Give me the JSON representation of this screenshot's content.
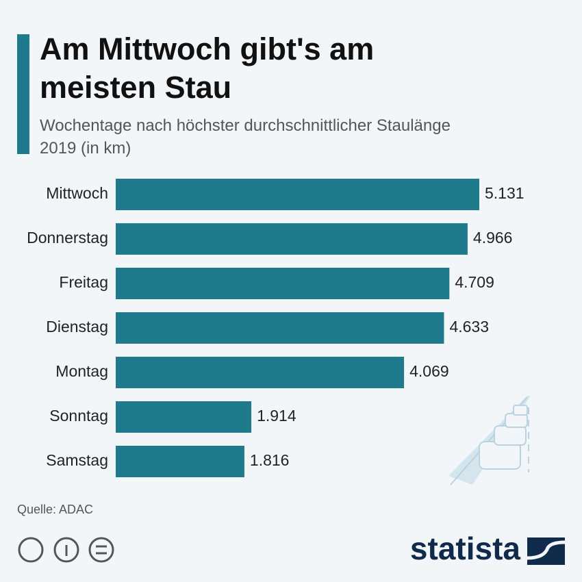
{
  "chart_data": {
    "type": "bar",
    "title": "Am Mittwoch gibt's am meisten Stau",
    "subtitle": "Wochentage nach höchster durchschnittlicher Staulänge 2019 (in km)",
    "categories": [
      "Mittwoch",
      "Donnerstag",
      "Freitag",
      "Dienstag",
      "Montag",
      "Sonntag",
      "Samstag"
    ],
    "values": [
      5131,
      4966,
      4709,
      4633,
      4069,
      1914,
      1816
    ],
    "value_labels": [
      "5.131",
      "4.966",
      "4.709",
      "4.633",
      "4.069",
      "1.914",
      "1.816"
    ],
    "color": "#1f7a8c",
    "source": "Quelle: ADAC",
    "logo": "statista"
  }
}
